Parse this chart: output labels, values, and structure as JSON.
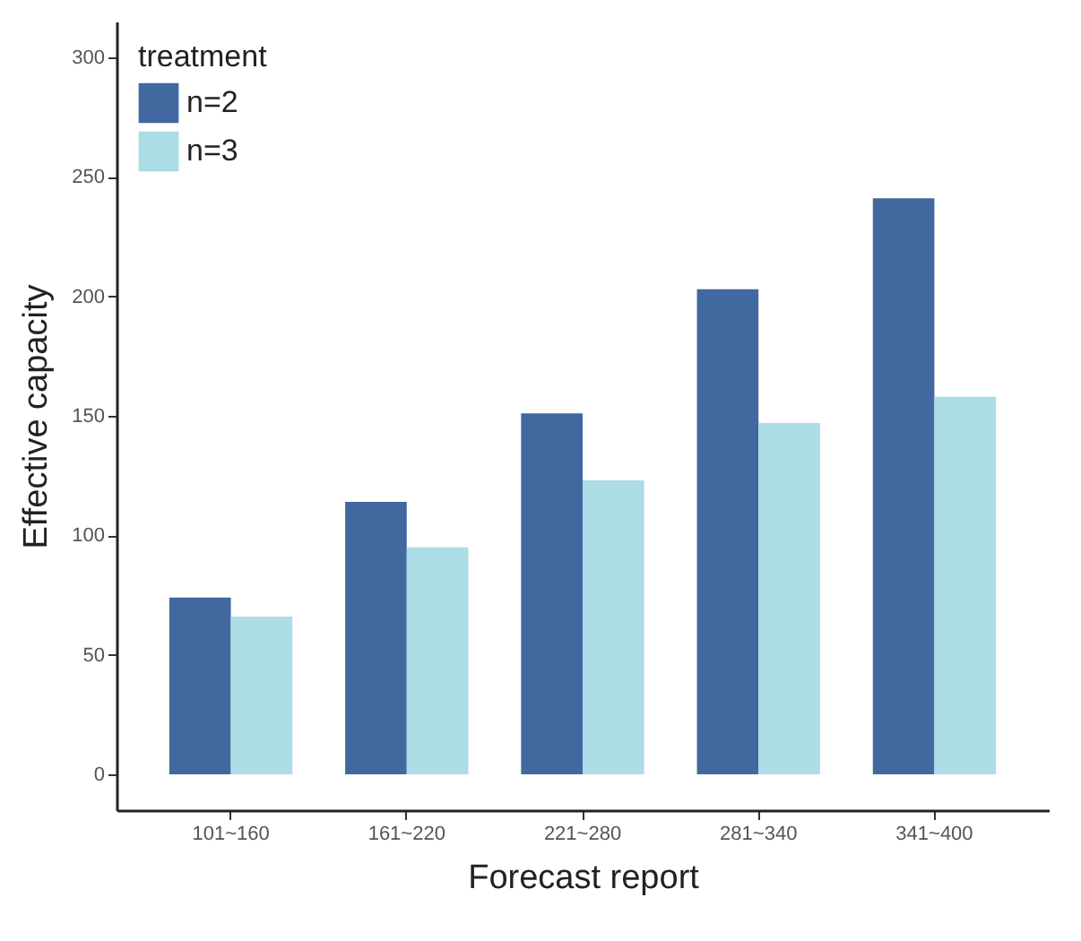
{
  "chart_data": {
    "type": "bar",
    "xlabel": "Forecast report",
    "ylabel": "Effective capacity",
    "legend_title": "treatment",
    "categories": [
      "101~160",
      "161~220",
      "221~280",
      "281~340",
      "341~400"
    ],
    "series": [
      {
        "name": "n=2",
        "color": "#4169a0",
        "values": [
          74,
          114,
          151,
          203,
          241
        ]
      },
      {
        "name": "n=3",
        "color": "#acdce6",
        "values": [
          66,
          95,
          123,
          147,
          158
        ]
      }
    ],
    "ylim": [
      -15,
      315
    ],
    "yticks": [
      0,
      50,
      100,
      150,
      200,
      250,
      300
    ],
    "grid": false,
    "legend": "top left"
  }
}
